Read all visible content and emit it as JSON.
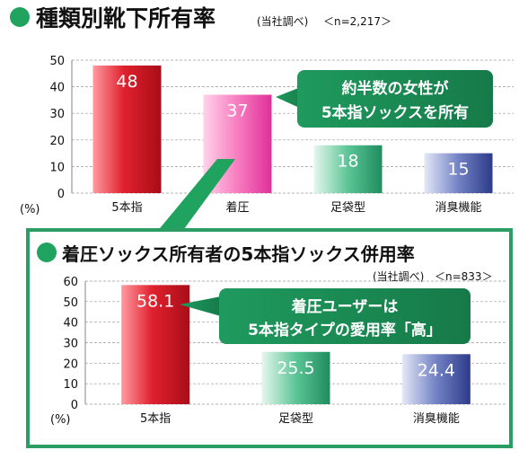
{
  "chart_data": [
    {
      "type": "bar",
      "title": "種類別靴下所有率",
      "source_note": "(当社調べ)",
      "sample": "＜n=2,217＞",
      "unit_label": "(%)",
      "categories": [
        "5本指",
        "着圧",
        "足袋型",
        "消臭機能"
      ],
      "values": [
        48,
        37,
        18,
        15
      ],
      "y_ticks": [
        "0",
        "10",
        "20",
        "30",
        "40",
        "50"
      ],
      "ylim": [
        0,
        50
      ],
      "grid": true,
      "callout": [
        "約半数の女性が",
        "5本指ソックスを所有"
      ],
      "colors": [
        "#cc1022",
        "#f24aa6",
        "#2fa57a",
        "#3b4d9c"
      ]
    },
    {
      "type": "bar",
      "title": "着圧ソックス所有者の5本指ソックス併用率",
      "source_note": "(当社調べ)",
      "sample": "＜n=833＞",
      "unit_label": "(%)",
      "categories": [
        "5本指",
        "足袋型",
        "消臭機能"
      ],
      "values": [
        58.1,
        25.5,
        24.4
      ],
      "y_ticks": [
        "0",
        "10",
        "20",
        "30",
        "40",
        "50",
        "60"
      ],
      "ylim": [
        0,
        60
      ],
      "grid": true,
      "callout": [
        "着圧ユーザーは",
        "5本指タイプの愛用率「高」"
      ],
      "colors": [
        "#cc1022",
        "#2fa57a",
        "#3b4d9c"
      ]
    }
  ],
  "colors": {
    "accent": "#1f9a5e",
    "frame": "#2b9d63"
  }
}
